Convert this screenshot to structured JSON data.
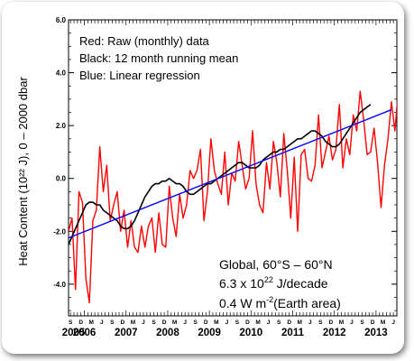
{
  "chart_data": {
    "type": "line",
    "ylabel": "Heat Content (10²² J), 0 – 2000 dbar",
    "ylim": [
      -5.2,
      6.0
    ],
    "yticks": [
      -4.0,
      -2.0,
      0.0,
      2.0,
      4.0,
      6.0
    ],
    "ytick_labels": [
      "-4.0",
      "-2.0",
      "0.0",
      "2.0",
      "4.0",
      "6.0"
    ],
    "xlim": [
      2005.62,
      2013.5
    ],
    "month_letters": [
      "J",
      "F",
      "M",
      "A",
      "M",
      "J",
      "J",
      "A",
      "S",
      "O",
      "N",
      "D"
    ],
    "years": [
      {
        "label": "2005",
        "x": 2005.2
      },
      {
        "label": "2006",
        "x": 2006.0
      },
      {
        "label": "2007",
        "x": 2007.0
      },
      {
        "label": "2008",
        "x": 2008.0
      },
      {
        "label": "2009",
        "x": 2009.0
      },
      {
        "label": "2010",
        "x": 2010.0
      },
      {
        "label": "2011",
        "x": 2011.0
      },
      {
        "label": "2012",
        "x": 2012.0
      },
      {
        "label": "2013",
        "x": 2013.0
      }
    ],
    "annotation_lines": [
      "Red: Raw (monthly) data",
      "Black: 12 month running mean",
      "Blue: Linear regression"
    ],
    "region": "Global, 60°S – 60°N",
    "trend": {
      "base": "6.3 x 10",
      "exp": "22",
      "unit": " J/decade"
    },
    "flux": {
      "base": "0.4 W m",
      "exp": "-2",
      "unit": "(Earth area)"
    },
    "series": [
      {
        "name": "Raw (monthly) data",
        "color": "#ff0000",
        "start": 2005.62,
        "step": 0.083333,
        "values": [
          -2.0,
          -1.5,
          -4.2,
          -0.5,
          -0.9,
          -3.8,
          -4.7,
          -1.6,
          -1.2,
          1.2,
          -0.5,
          0.5,
          -1.6,
          -1.0,
          -0.5,
          -2.0,
          -1.2,
          -2.6,
          -1.6,
          -2.6,
          -2.8,
          -1.8,
          -2.6,
          -1.8,
          -1.5,
          -2.8,
          -1.3,
          -2.5,
          -2.6,
          -0.3,
          -1.5,
          -2.2,
          -0.6,
          -1.5,
          -1.0,
          0.3,
          0.0,
          0.3,
          1.1,
          -1.6,
          -0.5,
          1.5,
          0.3,
          -0.2,
          -0.6,
          1.0,
          -1.0,
          0.2,
          -0.1,
          1.4,
          0.5,
          -0.4,
          0.0,
          1.8,
          -0.2,
          -1.0,
          -1.3,
          0.6,
          -0.4,
          1.4,
          0.6,
          -0.7,
          1.7,
          0.3,
          -1.5,
          0.8,
          -2.0,
          0.9,
          1.1,
          0.0,
          -0.1,
          0.5,
          2.4,
          0.4,
          1.0,
          1.6,
          0.7,
          1.1,
          2.8,
          0.4,
          1.5,
          0.9,
          2.4,
          1.8,
          3.3,
          2.2,
          0.9,
          1.0,
          1.9,
          0.6,
          -1.1,
          0.5,
          1.5,
          2.9,
          1.8,
          3.4,
          4.6,
          2.3,
          5.9,
          5.2,
          4.8,
          3.7,
          2.7,
          3.5
        ]
      },
      {
        "name": "12 month running mean",
        "color": "#000000",
        "start": 2005.62,
        "step": 0.083333,
        "values": [
          -2.5,
          -2.2,
          -1.9,
          -1.6,
          -1.3,
          -1.0,
          -0.9,
          -0.9,
          -1.0,
          -1.0,
          -1.2,
          -1.3,
          -1.4,
          -1.5,
          -1.6,
          -1.8,
          -1.9,
          -1.9,
          -1.8,
          -1.6,
          -1.3,
          -1.0,
          -0.7,
          -0.5,
          -0.3,
          -0.2,
          -0.2,
          -0.1,
          -0.1,
          0.0,
          -0.1,
          -0.2,
          -0.2,
          -0.3,
          -0.5,
          -0.6,
          -0.6,
          -0.5,
          -0.4,
          -0.3,
          -0.2,
          -0.2,
          -0.1,
          0.0,
          0.1,
          0.2,
          0.3,
          0.4,
          0.5,
          0.6,
          0.6,
          0.5,
          0.4,
          0.4,
          0.4,
          0.5,
          0.7,
          0.8,
          0.9,
          1.0,
          1.0,
          1.1,
          1.1,
          1.2,
          1.3,
          1.4,
          1.5,
          1.5,
          1.6,
          1.7,
          1.8,
          1.8,
          1.7,
          1.6,
          1.4,
          1.3,
          1.2,
          1.2,
          1.3,
          1.5,
          1.7,
          1.9,
          2.1,
          2.3,
          2.5,
          2.6,
          2.7,
          2.8
        ]
      },
      {
        "name": "Linear regression",
        "color": "#0000ff",
        "start": 2005.62,
        "step": 7.75,
        "values": [
          -2.25,
          2.6
        ]
      }
    ]
  }
}
